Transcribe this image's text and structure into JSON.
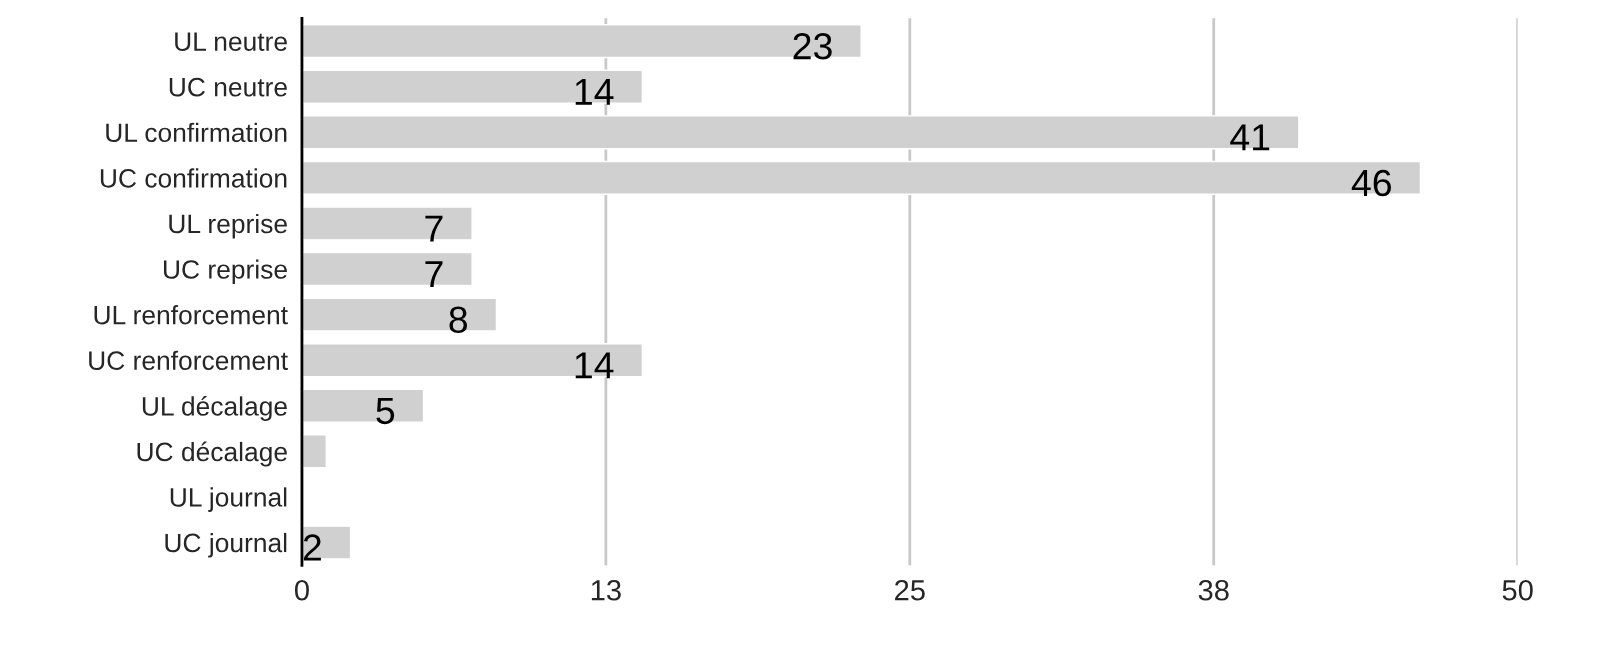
{
  "chart_data": {
    "type": "bar",
    "orientation": "horizontal",
    "categories": [
      "UL neutre",
      "UC neutre",
      "UL confirmation",
      "UC confirmation",
      "UL reprise",
      "UC reprise",
      "UL renforcement",
      "UC renforcement",
      "UL décalage",
      "UC décalage",
      "UL journal",
      "UC journal"
    ],
    "values": [
      23,
      14,
      41,
      46,
      7,
      7,
      8,
      14,
      5,
      1,
      null,
      2
    ],
    "value_labels": [
      "23",
      "14",
      "41",
      "46",
      "7",
      "7",
      "8",
      "14",
      "5",
      null,
      null,
      "2"
    ],
    "color": "#d0d0d0",
    "xlim": [
      0,
      50
    ],
    "xticks": [
      0,
      {
        "value": 12.5,
        "label": "13"
      },
      25,
      {
        "value": 37.5,
        "label": "38"
      },
      50
    ],
    "grid": "x"
  }
}
